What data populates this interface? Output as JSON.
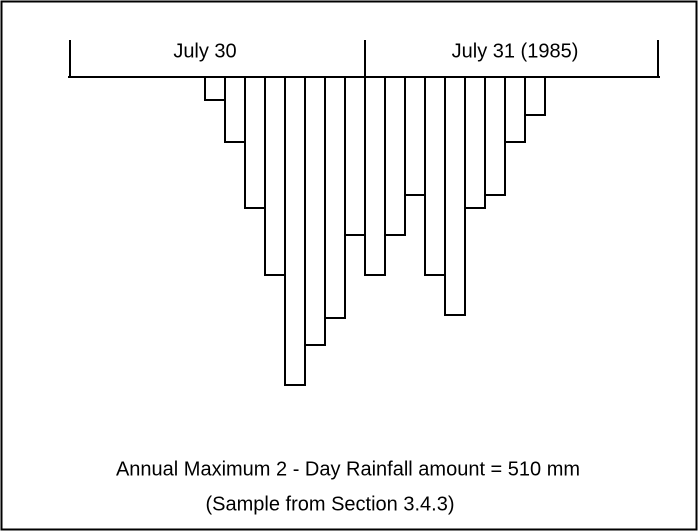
{
  "chart_data": {
    "type": "bar",
    "period_labels": [
      "July 30",
      "July 31 (1985)"
    ],
    "values": [
      23,
      65,
      131,
      198,
      308,
      268,
      241,
      158,
      198,
      158,
      118,
      198,
      238,
      131,
      118,
      65,
      38
    ],
    "ylim": [
      0,
      320
    ],
    "color": "#ffffff",
    "title": "Annual Maximum 2 - Day Rainfall amount = 510 mm",
    "subtitle": "(Sample from Section 3.4.3)"
  }
}
